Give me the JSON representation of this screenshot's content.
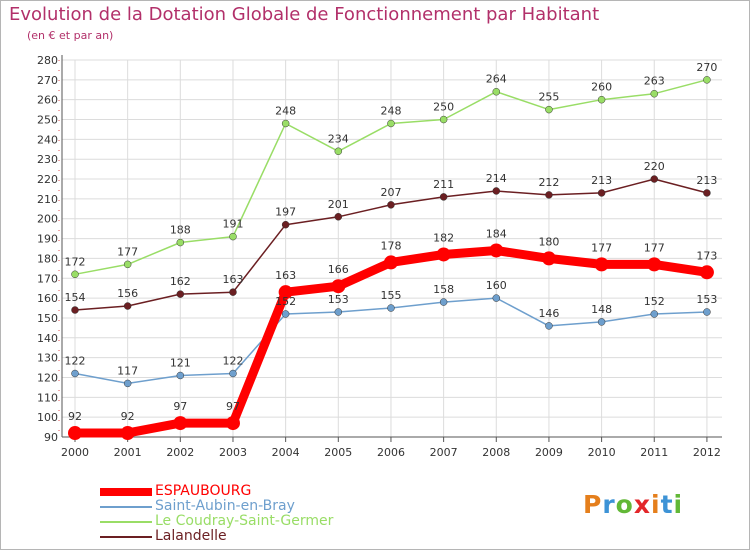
{
  "header": {
    "title": "Evolution de la Dotation Globale de Fonctionnement par Habitant",
    "subtitle": "(en € et par an)"
  },
  "logo": {
    "letters": [
      "P",
      "r",
      "o",
      "x",
      "i",
      "t",
      "i"
    ],
    "colors": [
      "#e57f1c",
      "#3d93d6",
      "#62b837",
      "#e3262a",
      "#e57f1c",
      "#3d93d6",
      "#62b837"
    ]
  },
  "chart_data": {
    "type": "line",
    "title": "Evolution de la Dotation Globale de Fonctionnement par Habitant",
    "subtitle": "(en € et par an)",
    "xlabel": "",
    "ylabel": "",
    "x": [
      "2000",
      "2001",
      "2002",
      "2003",
      "2004",
      "2005",
      "2006",
      "2007",
      "2008",
      "2009",
      "2010",
      "2011",
      "2012"
    ],
    "ylim": [
      90,
      280
    ],
    "yticks": [
      90,
      100,
      110,
      120,
      130,
      140,
      150,
      160,
      170,
      180,
      190,
      200,
      210,
      220,
      230,
      240,
      250,
      260,
      270,
      280
    ],
    "grid": true,
    "legend_position": "bottom-left",
    "series": [
      {
        "name": "ESPAUBOURG",
        "color": "#ff0000",
        "emphasis": true,
        "values": [
          92,
          92,
          97,
          97,
          163,
          166,
          178,
          182,
          184,
          180,
          177,
          177,
          173
        ],
        "labels": [
          "92",
          "92",
          "97",
          "97",
          "163",
          "166",
          "178",
          "182",
          "184",
          "180",
          "177",
          "177",
          "173"
        ]
      },
      {
        "name": "Saint-Aubin-en-Bray",
        "color": "#6e9fcd",
        "emphasis": false,
        "values": [
          122,
          117,
          121,
          122,
          152,
          153,
          155,
          158,
          160,
          146,
          148,
          152,
          153
        ],
        "labels": [
          "122",
          "117",
          "121",
          "122",
          "152",
          "153",
          "155",
          "158",
          "160",
          "146",
          "148",
          "152",
          "153"
        ]
      },
      {
        "name": "Le Coudray-Saint-Germer",
        "color": "#99dd66",
        "emphasis": false,
        "values": [
          172,
          177,
          188,
          191,
          248,
          234,
          248,
          250,
          264,
          255,
          260,
          263,
          270
        ],
        "labels": [
          "172",
          "177",
          "188",
          "191",
          "248",
          "234",
          "248",
          "250",
          "264",
          "255",
          "260",
          "263",
          "270"
        ]
      },
      {
        "name": "Lalandelle",
        "color": "#6b1f22",
        "emphasis": false,
        "values": [
          154,
          156,
          162,
          163,
          197,
          201,
          207,
          211,
          214,
          212,
          213,
          220,
          213
        ],
        "labels": [
          "154",
          "156",
          "162",
          "163",
          "197",
          "201",
          "207",
          "211",
          "214",
          "212",
          "213",
          "220",
          "213"
        ]
      }
    ]
  }
}
